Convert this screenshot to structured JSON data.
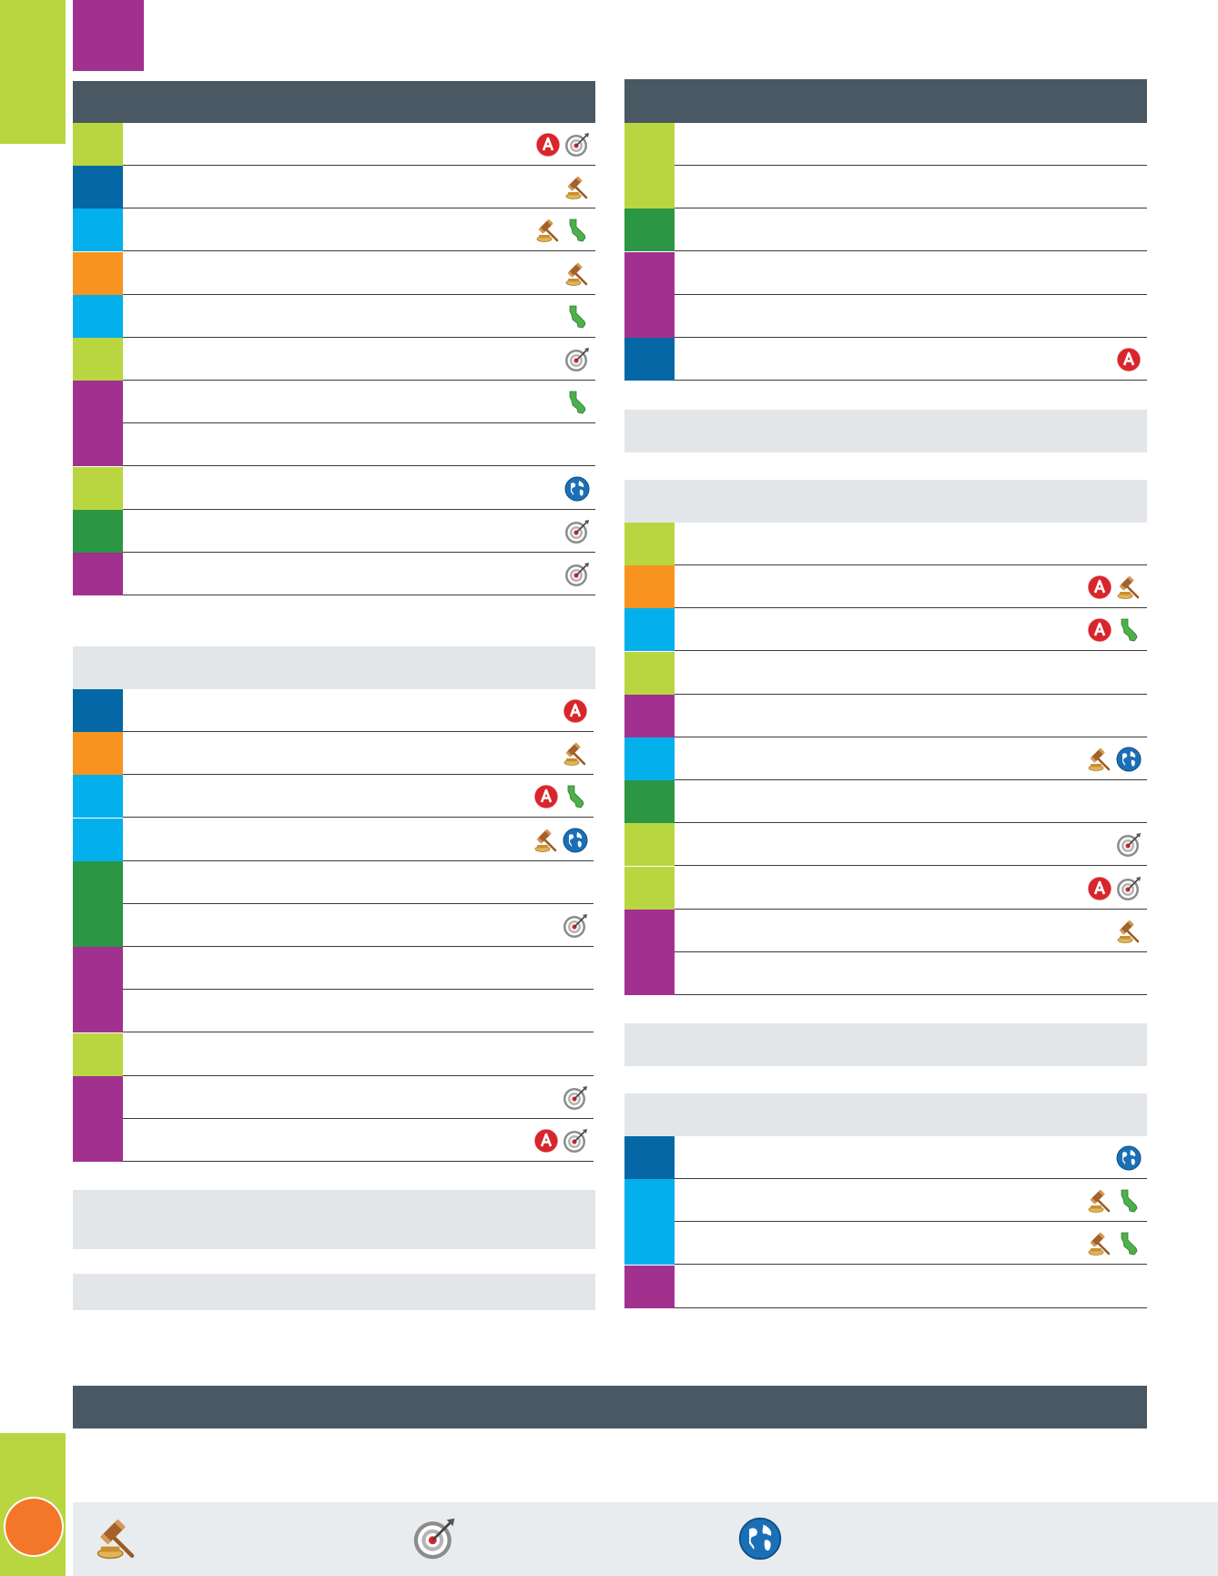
{
  "colors": {
    "lime": "#b9d640",
    "navy": "#0567a6",
    "cyan": "#03b0ec",
    "orange": "#f7931e",
    "purple": "#a2308f",
    "green": "#2b9643",
    "header": "#4a5864",
    "band": "#e3e6e9",
    "page_tab": "#f47629"
  },
  "left_table": [
    {
      "color": "lime",
      "icons": [
        "a-badge-icon",
        "target-icon"
      ]
    },
    {
      "color": "navy",
      "icons": [
        "gavel-icon"
      ]
    },
    {
      "color": "cyan",
      "icons": [
        "gavel-icon",
        "california-icon"
      ]
    },
    {
      "color": "orange",
      "icons": [
        "gavel-icon"
      ]
    },
    {
      "color": "cyan",
      "icons": [
        "california-icon"
      ]
    },
    {
      "color": "lime",
      "icons": [
        "target-icon"
      ]
    },
    {
      "color": "purple",
      "icons": [
        "california-icon"
      ]
    },
    {
      "color": "purple",
      "icons": []
    },
    {
      "color": "lime",
      "icons": [
        "globe-icon"
      ]
    },
    {
      "color": "green",
      "icons": [
        "target-icon"
      ]
    },
    {
      "color": "purple",
      "icons": [
        "target-icon"
      ]
    }
  ],
  "left_table_2": [
    {
      "color": "navy",
      "icons": [
        "a-badge-icon"
      ]
    },
    {
      "color": "orange",
      "icons": [
        "gavel-icon"
      ]
    },
    {
      "color": "cyan",
      "icons": [
        "a-badge-icon",
        "california-icon"
      ]
    },
    {
      "color": "cyan",
      "icons": [
        "gavel-icon",
        "globe-icon"
      ]
    },
    {
      "color": "green",
      "icons": []
    },
    {
      "color": "green",
      "icons": [
        "target-icon"
      ]
    },
    {
      "color": "purple",
      "icons": []
    },
    {
      "color": "purple",
      "icons": []
    },
    {
      "color": "lime",
      "icons": []
    },
    {
      "color": "purple",
      "icons": [
        "target-icon"
      ]
    },
    {
      "color": "purple",
      "icons": [
        "a-badge-icon",
        "target-icon"
      ]
    }
  ],
  "right_table": [
    {
      "color": "lime",
      "icons": []
    },
    {
      "color": "lime",
      "icons": []
    },
    {
      "color": "green",
      "icons": []
    },
    {
      "color": "purple",
      "icons": []
    },
    {
      "color": "purple",
      "icons": []
    },
    {
      "color": "navy",
      "icons": [
        "a-badge-icon"
      ]
    }
  ],
  "right_table_2": [
    {
      "color": "lime",
      "icons": []
    },
    {
      "color": "orange",
      "icons": [
        "a-badge-icon",
        "gavel-icon"
      ]
    },
    {
      "color": "cyan",
      "icons": [
        "a-badge-icon",
        "california-icon"
      ]
    },
    {
      "color": "lime",
      "icons": []
    },
    {
      "color": "purple",
      "icons": []
    },
    {
      "color": "cyan",
      "icons": [
        "gavel-icon",
        "globe-icon"
      ]
    },
    {
      "color": "green",
      "icons": []
    },
    {
      "color": "lime",
      "icons": [
        "target-icon"
      ]
    },
    {
      "color": "lime",
      "icons": [
        "a-badge-icon",
        "target-icon"
      ]
    },
    {
      "color": "purple",
      "icons": [
        "gavel-icon"
      ]
    },
    {
      "color": "purple",
      "icons": []
    }
  ],
  "right_table_3": [
    {
      "color": "navy",
      "icons": [
        "globe-icon"
      ]
    },
    {
      "color": "cyan",
      "icons": [
        "gavel-icon",
        "california-icon"
      ]
    },
    {
      "color": "cyan",
      "icons": [
        "gavel-icon",
        "california-icon"
      ]
    },
    {
      "color": "purple",
      "icons": []
    }
  ],
  "legend": {
    "icons": [
      "gavel-icon",
      "target-icon",
      "globe-icon"
    ]
  }
}
